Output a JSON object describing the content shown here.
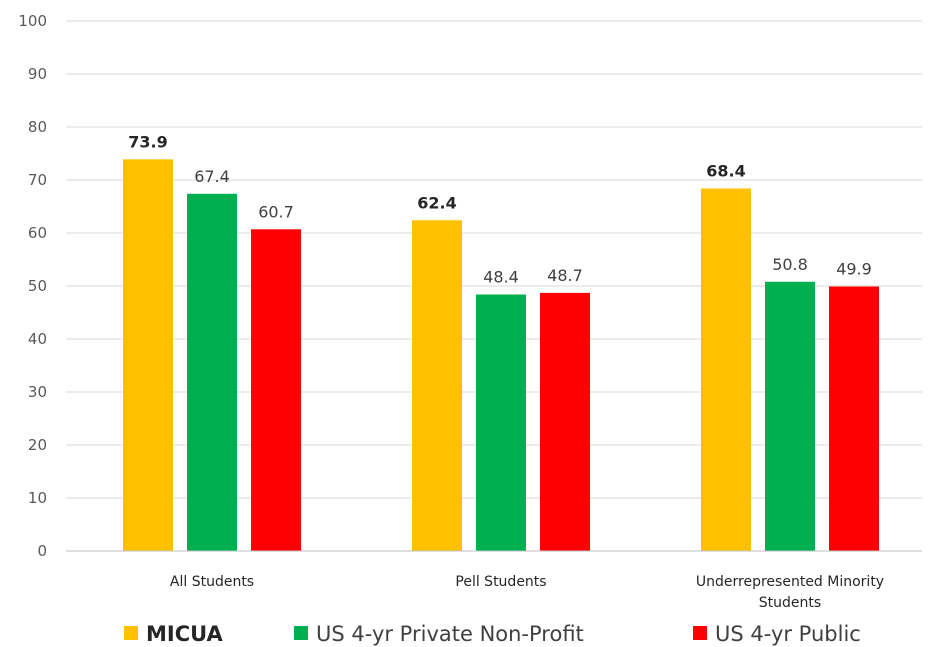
{
  "chart_data": {
    "type": "bar",
    "categories": [
      "All Students",
      "Pell Students",
      "Underrepresented Minority Students"
    ],
    "category_label_lines": [
      [
        "All Students"
      ],
      [
        "Pell Students"
      ],
      [
        "Underrepresented Minority",
        "Students"
      ]
    ],
    "series": [
      {
        "name": "MICUA",
        "values": [
          73.9,
          62.4,
          68.4
        ],
        "color": "#FFC000",
        "label_bold": true
      },
      {
        "name": "US 4-yr Private Non-Profit",
        "values": [
          67.4,
          48.4,
          50.8
        ],
        "color": "#00B050",
        "label_bold": false
      },
      {
        "name": "US 4-yr Public",
        "values": [
          60.7,
          48.7,
          49.9
        ],
        "color": "#FF0000",
        "label_bold": false
      }
    ],
    "value_labels": [
      [
        "73.9",
        "62.4",
        "68.4"
      ],
      [
        "67.4",
        "48.4",
        "50.8"
      ],
      [
        "60.7",
        "48.7",
        "49.9"
      ]
    ],
    "ylim": [
      0,
      100
    ],
    "yticks": [
      "0",
      "10",
      "20",
      "30",
      "40",
      "50",
      "60",
      "70",
      "80",
      "90",
      "100"
    ],
    "grid": true,
    "legend_position": "bottom",
    "title": "",
    "xlabel": "",
    "ylabel": ""
  }
}
